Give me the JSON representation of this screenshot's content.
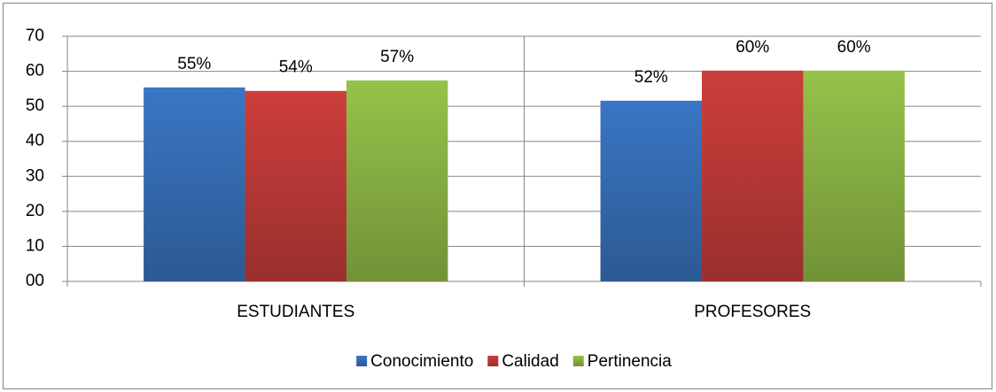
{
  "chart_data": {
    "type": "bar",
    "categories": [
      "ESTUDIANTES",
      "PROFESORES"
    ],
    "series": [
      {
        "name": "Conocimiento",
        "color": "#3a76c4",
        "values": [
          55.4,
          51.6
        ],
        "value_labels": [
          "55%",
          "52%"
        ]
      },
      {
        "name": "Calidad",
        "color": "#cc3e3c",
        "values": [
          54.4,
          60.2
        ],
        "value_labels": [
          "54%",
          "60%"
        ]
      },
      {
        "name": "Pertinencia",
        "color": "#96c24a",
        "values": [
          57.4,
          60.2
        ],
        "value_labels": [
          "57%",
          "60%"
        ]
      }
    ],
    "ylim": [
      0,
      70
    ],
    "yticks": [
      {
        "value": 0,
        "label": "00"
      },
      10,
      20,
      30,
      40,
      50,
      60,
      70
    ],
    "grid": true,
    "legend": "bottom"
  }
}
